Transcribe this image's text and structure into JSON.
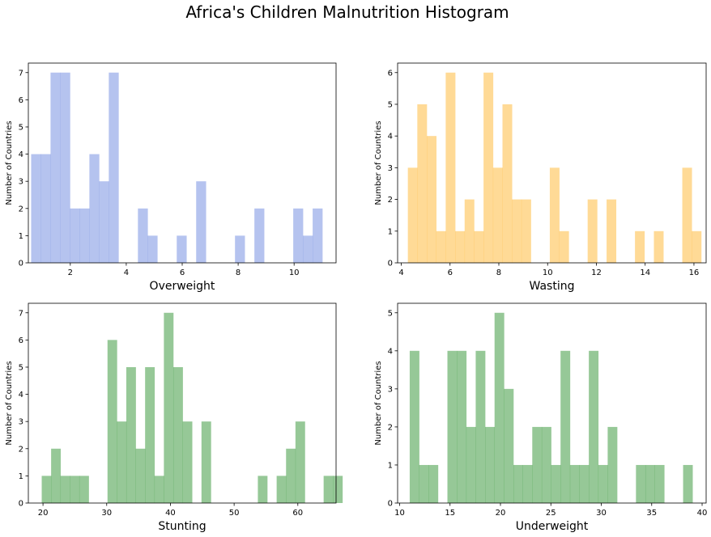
{
  "title": "Africa's Children Malnutrition Histogram",
  "chart_data": [
    {
      "type": "bar",
      "chart_kind": "histogram",
      "xlabel": "Overweight",
      "ylabel": "Number of Countries",
      "color": "#6b87e0",
      "xlim": [
        0.5,
        11.5
      ],
      "ylim": [
        0,
        7.35
      ],
      "xticks": [
        2,
        4,
        6,
        8,
        10
      ],
      "yticks": [
        0,
        1,
        2,
        3,
        4,
        5,
        6,
        7
      ],
      "bin_start": 0.6,
      "bin_width": 0.347,
      "counts": [
        4,
        4,
        7,
        7,
        2,
        2,
        4,
        3,
        7,
        0,
        0,
        2,
        1,
        0,
        0,
        1,
        0,
        3,
        0,
        0,
        0,
        1,
        0,
        2,
        0,
        0,
        0,
        2,
        1,
        2
      ]
    },
    {
      "type": "bar",
      "chart_kind": "histogram",
      "xlabel": "Wasting",
      "ylabel": "Number of Countries",
      "color": "#ffb52e",
      "xlim": [
        3.85,
        16.5
      ],
      "ylim": [
        0,
        6.3
      ],
      "xticks": [
        4,
        6,
        8,
        10,
        12,
        14,
        16
      ],
      "yticks": [
        0,
        1,
        2,
        3,
        4,
        5,
        6
      ],
      "bin_start": 4.27,
      "bin_width": 0.388,
      "counts": [
        3,
        5,
        4,
        1,
        6,
        1,
        2,
        1,
        6,
        3,
        5,
        2,
        2,
        0,
        0,
        3,
        1,
        0,
        0,
        2,
        0,
        2,
        0,
        0,
        1,
        0,
        1,
        0,
        0,
        3,
        1
      ]
    },
    {
      "type": "bar",
      "chart_kind": "histogram",
      "xlabel": "Stunting",
      "ylabel": "Number of Countries",
      "color": "#2e9230",
      "xlim": [
        17.7,
        66.0
      ],
      "ylim": [
        0,
        7.35
      ],
      "xticks": [
        20,
        30,
        40,
        50,
        60
      ],
      "yticks": [
        0,
        1,
        2,
        3,
        4,
        5,
        6,
        7
      ],
      "bin_start": 19.8,
      "bin_width": 1.475,
      "counts": [
        1,
        2,
        1,
        1,
        1,
        0,
        0,
        6,
        3,
        5,
        2,
        5,
        1,
        7,
        5,
        3,
        0,
        3,
        0,
        0,
        0,
        0,
        0,
        1,
        0,
        1,
        2,
        3,
        0,
        0,
        1,
        1
      ]
    },
    {
      "type": "bar",
      "chart_kind": "histogram",
      "xlabel": "Underweight",
      "ylabel": "Number of Countries",
      "color": "#2e9230",
      "xlim": [
        9.8,
        40.4
      ],
      "ylim": [
        0,
        5.25
      ],
      "xticks": [
        10,
        15,
        20,
        25,
        30,
        35,
        40
      ],
      "yticks": [
        0,
        1,
        2,
        3,
        4,
        5
      ],
      "bin_start": 11.0,
      "bin_width": 0.935,
      "counts": [
        4,
        1,
        1,
        0,
        4,
        4,
        2,
        4,
        2,
        5,
        3,
        1,
        1,
        2,
        2,
        1,
        4,
        1,
        1,
        4,
        1,
        2,
        0,
        0,
        1,
        1,
        1,
        0,
        0,
        1
      ]
    }
  ]
}
